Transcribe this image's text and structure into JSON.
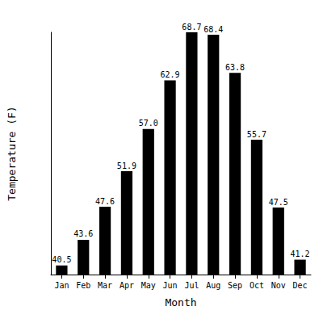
{
  "chart_data": {
    "type": "bar",
    "xlabel": "Month",
    "ylabel": "Temperature (F)",
    "categories": [
      "Jan",
      "Feb",
      "Mar",
      "Apr",
      "May",
      "Jun",
      "Jul",
      "Aug",
      "Sep",
      "Oct",
      "Nov",
      "Dec"
    ],
    "values": [
      40.5,
      43.6,
      47.6,
      51.9,
      57.0,
      62.9,
      68.7,
      68.4,
      63.8,
      55.7,
      47.5,
      41.2
    ],
    "value_labels": [
      "40.5",
      "43.6",
      "47.6",
      "51.9",
      "57.0",
      "62.9",
      "68.7",
      "68.4",
      "63.8",
      "55.7",
      "47.5",
      "41.2"
    ],
    "color": "#000000",
    "ylim": [
      39.4,
      68.7
    ],
    "grid": false,
    "data_labels": true,
    "tick_labels": "x"
  }
}
